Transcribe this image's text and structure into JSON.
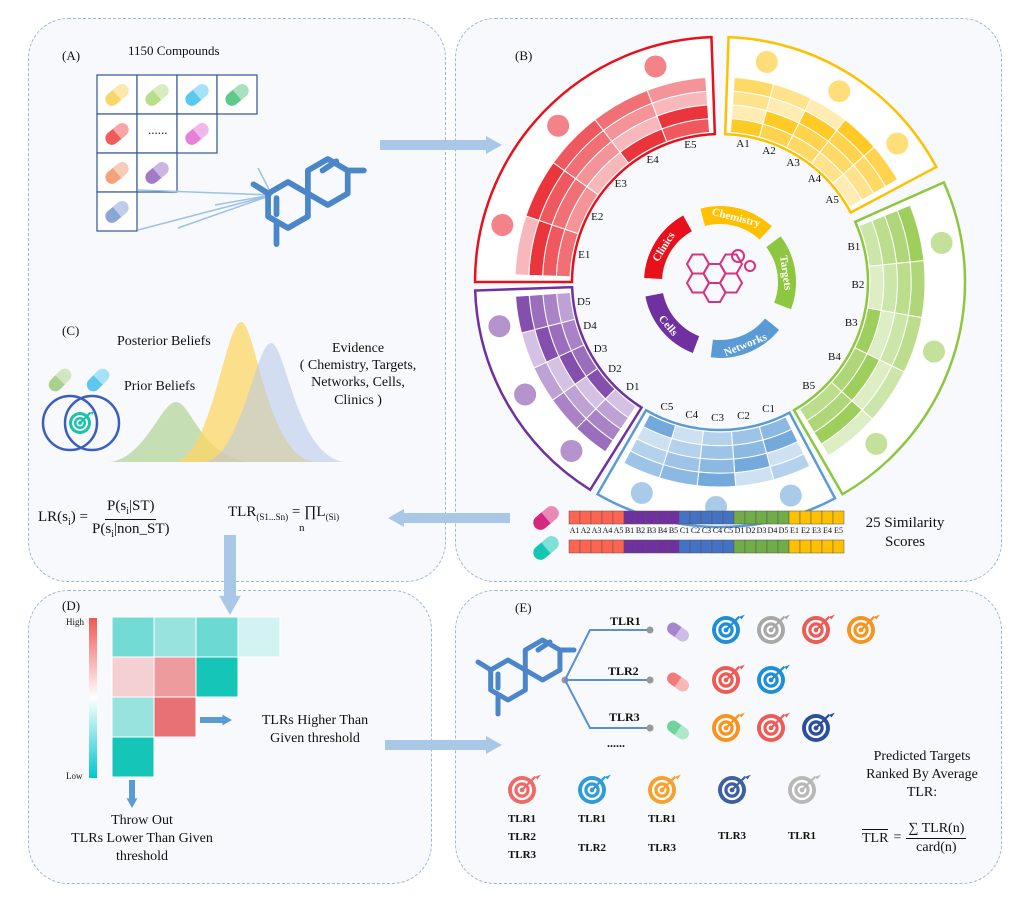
{
  "panel_a": {
    "label": "(A)",
    "title": "1150 Compounds",
    "ellipsis": "......"
  },
  "panel_b": {
    "label": "(B)",
    "categories": [
      {
        "name": "Chemistry",
        "color": "#FFC000",
        "labels": [
          "A1",
          "A2",
          "A3",
          "A4",
          "A5"
        ]
      },
      {
        "name": "Targets",
        "color": "#8DC63F",
        "labels": [
          "B1",
          "B2",
          "B3",
          "B4",
          "B5"
        ]
      },
      {
        "name": "Networks",
        "color": "#5B9BD5",
        "labels": [
          "C1",
          "C2",
          "C3",
          "C4",
          "C5"
        ]
      },
      {
        "name": "Cells",
        "color": "#7030A0",
        "labels": [
          "D1",
          "D2",
          "D3",
          "D4",
          "D5"
        ]
      },
      {
        "name": "Clinics",
        "color": "#E8111B",
        "labels": [
          "E1",
          "E2",
          "E3",
          "E4",
          "E5"
        ]
      }
    ],
    "center_icon": "molecule-icon",
    "score_bar": {
      "labels": [
        "A1",
        "A2",
        "A3",
        "A4",
        "A5",
        "B1",
        "B2",
        "B3",
        "B4",
        "B5",
        "C1",
        "C2",
        "C3",
        "C4",
        "C5",
        "D1",
        "D2",
        "D3",
        "D4",
        "D5",
        "E1",
        "E2",
        "E3",
        "E4",
        "E5"
      ],
      "group_colors": [
        "#FF6450",
        "#7030A0",
        "#4472C4",
        "#70AD47",
        "#FFC000"
      ],
      "caption_line1": "25 Similarity",
      "caption_line2": "Scores"
    }
  },
  "panel_c": {
    "label": "(C)",
    "posterior": "Posterior Beliefs",
    "prior": "Prior Beliefs",
    "evidence_lines": [
      "Evidence",
      "( Chemistry, Targets,",
      "Networks, Cells,",
      "Clinics )"
    ],
    "lr_lhs": "LR(s",
    "lr_sub": "i",
    "lr_close": ") =",
    "lr_num": "P(s",
    "lr_num_rest": "|ST)",
    "lr_den": "P(s",
    "lr_den_rest": "|non_ST)",
    "tlr_lhs": "TLR",
    "tlr_sub": "(S1...Sn)",
    "tlr_eq": "= ∏",
    "tlr_n": "n",
    "tlr_L": "L",
    "tlr_Lsub": "(Si)"
  },
  "panel_d": {
    "label": "(D)",
    "high": "High",
    "low": "Low",
    "heatmap_rows": [
      [
        "#72DBD4",
        "#98E3DD",
        "#6CD9D2",
        "#D2F3F1"
      ],
      [
        "#F4D0D3",
        "#EE9B9E",
        "#14C5B8"
      ],
      [
        "#98E3DD",
        "#E87176"
      ],
      [
        "#14C5B8"
      ]
    ],
    "higher_line1": "TLRs Higher Than",
    "higher_line2": "Given threshold",
    "throw_lines": [
      "Throw Out",
      "TLRs Lower Than Given",
      "threshold"
    ]
  },
  "panel_e": {
    "label": "(E)",
    "branches": [
      {
        "label": "TLR1",
        "pill": "#A585D0",
        "targets": [
          "#1E8FD6",
          "#A8A8A8",
          "#EE5A55",
          "#F7931E"
        ]
      },
      {
        "label": "TLR2",
        "pill": "#F27A7A",
        "targets": [
          "#EE5A55",
          "#1E8FD6"
        ]
      },
      {
        "label": "TLR3",
        "pill": "#6FD49B",
        "targets": [
          "#F7931E",
          "#EE5A55",
          "#2B4F9A"
        ]
      }
    ],
    "ellipsis": "......",
    "ranked": [
      {
        "color": "#EE6A66",
        "tlrs": [
          "TLR1",
          "TLR2",
          "TLR3"
        ]
      },
      {
        "color": "#2E9BDA",
        "tlrs": [
          "TLR1",
          "TLR2"
        ]
      },
      {
        "color": "#F7A02B",
        "tlrs": [
          "TLR1",
          "TLR3"
        ]
      },
      {
        "color": "#3E5FA0",
        "tlrs": [
          "TLR3"
        ]
      },
      {
        "color": "#B8B8B8",
        "tlrs": [
          "TLR1"
        ]
      }
    ],
    "caption_lines": [
      "Predicted Targets",
      "Ranked By Average",
      "TLR:"
    ],
    "avg_lhs": "TLR",
    "avg_eq": "=",
    "avg_num": "∑ TLR(n)",
    "avg_den": "card(n)"
  }
}
